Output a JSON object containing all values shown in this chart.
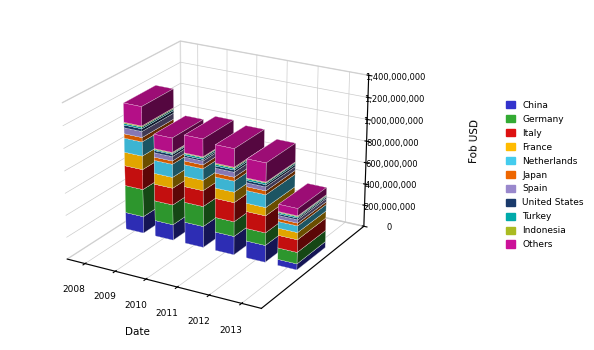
{
  "years": [
    2008,
    2009,
    2010,
    2011,
    2012,
    2013
  ],
  "categories": [
    "China",
    "Germany",
    "Italy",
    "France",
    "Netherlands",
    "Japan",
    "Spain",
    "United States",
    "Turkey",
    "Indonesia",
    "Others"
  ],
  "colors": [
    "#3333CC",
    "#33AA33",
    "#DD1111",
    "#FFBB00",
    "#44CCEE",
    "#EE6600",
    "#9988CC",
    "#1A3A6B",
    "#00AAAA",
    "#AABB22",
    "#CC1199"
  ],
  "data": {
    "China": [
      155000000,
      145000000,
      195000000,
      170000000,
      155000000,
      55000000
    ],
    "Germany": [
      255000000,
      185000000,
      185000000,
      135000000,
      115000000,
      105000000
    ],
    "Italy": [
      185000000,
      155000000,
      145000000,
      175000000,
      155000000,
      115000000
    ],
    "France": [
      125000000,
      100000000,
      95000000,
      95000000,
      75000000,
      65000000
    ],
    "Netherlands": [
      130000000,
      120000000,
      105000000,
      100000000,
      115000000,
      60000000
    ],
    "Japan": [
      40000000,
      30000000,
      35000000,
      35000000,
      35000000,
      25000000
    ],
    "Spain": [
      55000000,
      40000000,
      35000000,
      45000000,
      35000000,
      30000000
    ],
    "United States": [
      25000000,
      20000000,
      15000000,
      20000000,
      20000000,
      15000000
    ],
    "Turkey": [
      15000000,
      10000000,
      15000000,
      15000000,
      15000000,
      12000000
    ],
    "Indonesia": [
      10000000,
      8000000,
      8000000,
      10000000,
      8000000,
      8000000
    ],
    "Others": [
      175000000,
      130000000,
      160000000,
      165000000,
      170000000,
      65000000
    ]
  },
  "ylabel": "Fob USD",
  "xlabel": "Date",
  "zlim": [
    0,
    1400000000
  ],
  "zticks": [
    0,
    200000000,
    400000000,
    600000000,
    800000000,
    1000000000,
    1200000000,
    1400000000
  ],
  "background_color": "#FFFFFF",
  "grid_color": "#CCCCCC",
  "elev": 22,
  "azim": -60,
  "bar_width": 0.6,
  "bar_depth": 0.5
}
